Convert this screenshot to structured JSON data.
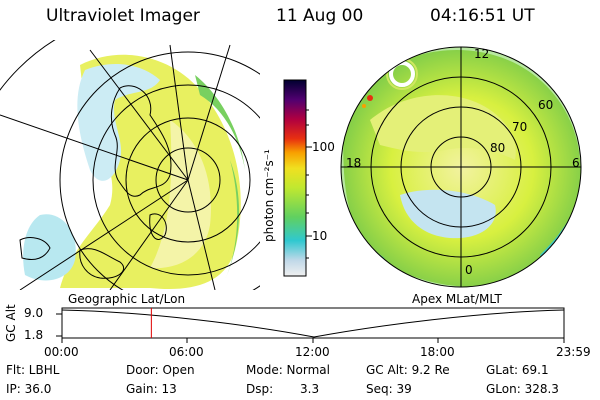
{
  "header": {
    "instrument": "Ultraviolet Imager",
    "date": "11 Aug 00",
    "time": "04:16:51 UT"
  },
  "colorbar": {
    "unit_label": "photon cm⁻²s⁻¹",
    "ticks": [
      "100",
      "10"
    ]
  },
  "left_panel": {
    "caption": "Geographic Lat/Lon"
  },
  "right_panel": {
    "caption": "Apex  MLat/MLT",
    "mlt_labels": [
      "12",
      "18",
      "6",
      "0"
    ],
    "lat_labels": [
      "60",
      "70",
      "80"
    ]
  },
  "altitude_plot": {
    "ylabel": "GC Alt",
    "yticks": [
      "9.0",
      "1.8"
    ],
    "time_ticks": [
      "00:00",
      "06:00",
      "12:00",
      "18:00",
      "23:59"
    ],
    "current_time_fraction": 0.178
  },
  "info": {
    "filter": "Flt: LBHL",
    "door": "Door: Open",
    "mode": "Mode: Normal",
    "gc_alt": "GC Alt: 9.2 Re",
    "glat": "GLat:  69.1",
    "ip": "IP: 36.0",
    "gain": "Gain: 13",
    "dsp_label": "Dsp:",
    "dsp_value": "3.3",
    "seq": "Seq: 39",
    "glon": "GLon: 328.3"
  }
}
